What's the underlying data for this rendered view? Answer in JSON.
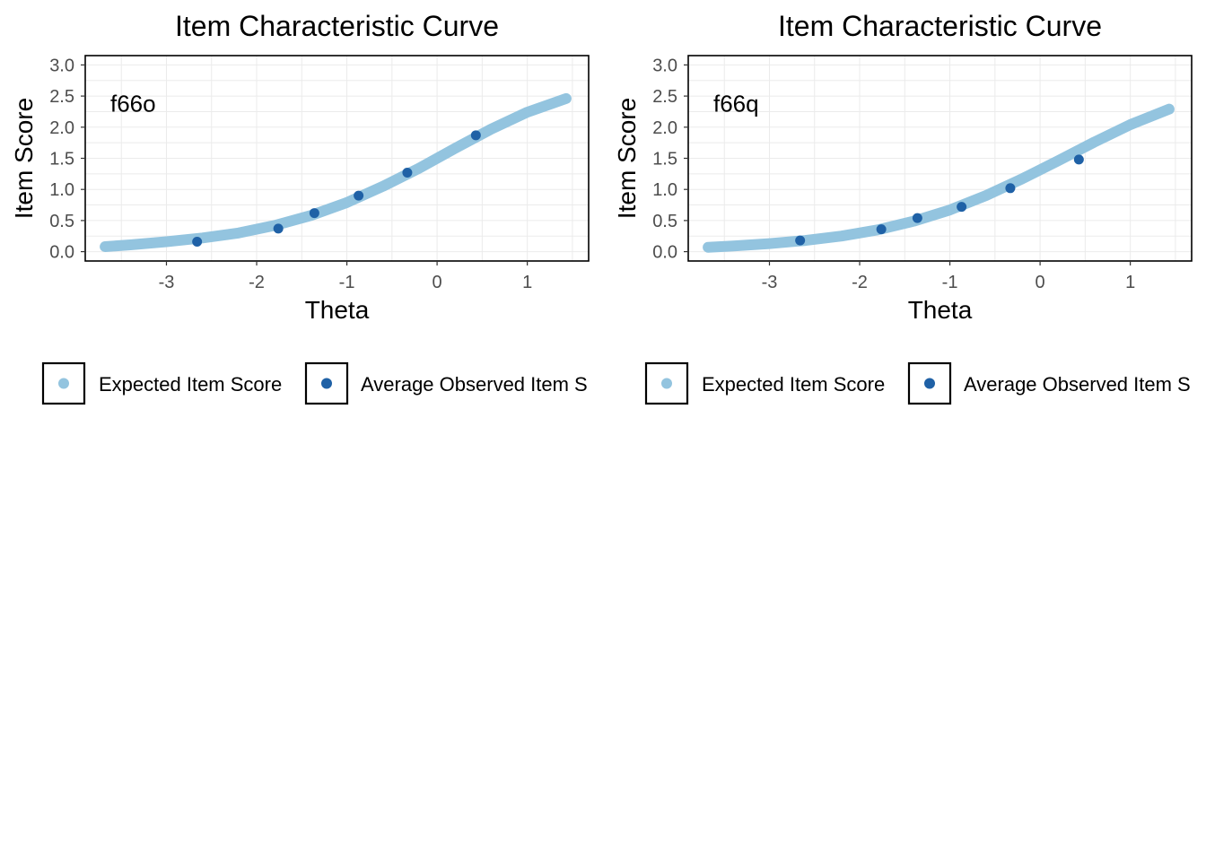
{
  "colors": {
    "expected": "#93c4df",
    "observed": "#1f61a6"
  },
  "chart_data": [
    {
      "type": "line",
      "title": "Item Characteristic Curve",
      "xlabel": "Theta",
      "ylabel": "Item Score",
      "item_label": "f66o",
      "xlim": [
        -3.9,
        1.68
      ],
      "ylim": [
        -0.15,
        3.15
      ],
      "x_ticks": [
        -3,
        -2,
        -1,
        0,
        1
      ],
      "y_ticks": [
        0.0,
        0.5,
        1.0,
        1.5,
        2.0,
        2.5,
        3.0
      ],
      "x_tick_labels": [
        "-3",
        "-2",
        "-1",
        "0",
        "1"
      ],
      "y_tick_labels": [
        "0.0",
        "0.5",
        "1.0",
        "1.5",
        "2.0",
        "2.5",
        "3.0"
      ],
      "grid": true,
      "legend_position": "bottom",
      "legend": [
        "Expected Item Score",
        "Average Observed Item S"
      ],
      "series": [
        {
          "name": "Expected Item Score",
          "kind": "line",
          "x": [
            -3.68,
            -3.4,
            -3.0,
            -2.6,
            -2.2,
            -1.8,
            -1.4,
            -1.0,
            -0.6,
            -0.2,
            0.2,
            0.6,
            1.0,
            1.43
          ],
          "y": [
            0.08,
            0.11,
            0.16,
            0.22,
            0.3,
            0.42,
            0.58,
            0.79,
            1.05,
            1.34,
            1.66,
            1.97,
            2.24,
            2.46
          ]
        },
        {
          "name": "Average Observed Item S",
          "kind": "points",
          "x": [
            -2.66,
            -1.76,
            -1.36,
            -0.87,
            -0.33,
            0.43
          ],
          "y": [
            0.16,
            0.37,
            0.62,
            0.9,
            1.27,
            1.87
          ]
        }
      ]
    },
    {
      "type": "line",
      "title": "Item Characteristic Curve",
      "xlabel": "Theta",
      "ylabel": "Item Score",
      "item_label": "f66q",
      "xlim": [
        -3.9,
        1.68
      ],
      "ylim": [
        -0.15,
        3.15
      ],
      "x_ticks": [
        -3,
        -2,
        -1,
        0,
        1
      ],
      "y_ticks": [
        0.0,
        0.5,
        1.0,
        1.5,
        2.0,
        2.5,
        3.0
      ],
      "x_tick_labels": [
        "-3",
        "-2",
        "-1",
        "0",
        "1"
      ],
      "y_tick_labels": [
        "0.0",
        "0.5",
        "1.0",
        "1.5",
        "2.0",
        "2.5",
        "3.0"
      ],
      "grid": true,
      "legend_position": "bottom",
      "legend": [
        "Expected Item Score",
        "Average Observed Item S"
      ],
      "series": [
        {
          "name": "Expected Item Score",
          "kind": "line",
          "x": [
            -3.68,
            -3.4,
            -3.0,
            -2.6,
            -2.2,
            -1.8,
            -1.4,
            -1.0,
            -0.6,
            -0.2,
            0.2,
            0.6,
            1.0,
            1.43
          ],
          "y": [
            0.07,
            0.09,
            0.13,
            0.18,
            0.25,
            0.35,
            0.49,
            0.67,
            0.9,
            1.17,
            1.46,
            1.76,
            2.04,
            2.29
          ]
        },
        {
          "name": "Average Observed Item S",
          "kind": "points",
          "x": [
            -2.66,
            -1.76,
            -1.36,
            -0.87,
            -0.33,
            0.43
          ],
          "y": [
            0.18,
            0.36,
            0.54,
            0.72,
            1.02,
            1.48
          ]
        }
      ]
    }
  ]
}
